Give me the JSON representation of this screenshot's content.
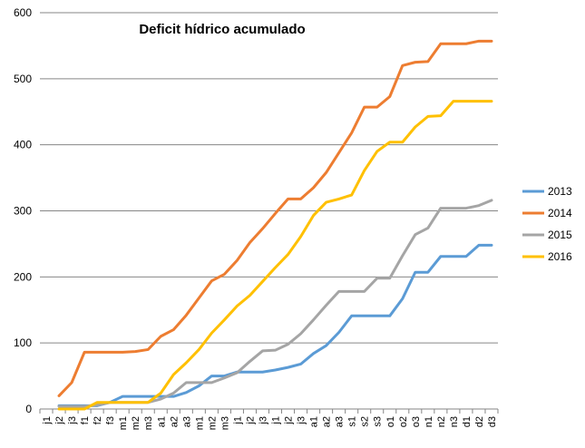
{
  "chart_data": {
    "type": "line",
    "title": "Deficit hídrico acumulado",
    "xlabel": "",
    "ylabel": "",
    "ylim": [
      0,
      600
    ],
    "yticks": [
      0,
      100,
      200,
      300,
      400,
      500,
      600
    ],
    "grid": true,
    "legend_position": "right",
    "categories": [
      "j1",
      "j2",
      "j3",
      "f1",
      "f2",
      "f3",
      "m1",
      "m2",
      "m3",
      "a1",
      "a2",
      "a3",
      "m1",
      "m2",
      "m3",
      "j1",
      "j2",
      "j3",
      "j1",
      "j2",
      "j3",
      "a1",
      "a2",
      "a3",
      "s1",
      "s2",
      "s3",
      "o1",
      "o2",
      "o3",
      "n1",
      "n2",
      "n3",
      "d1",
      "d2",
      "d3"
    ],
    "series": [
      {
        "name": "2013",
        "color": "#5B9BD5",
        "values": [
          null,
          5,
          5,
          5,
          5,
          10,
          19,
          19,
          19,
          19,
          19,
          25,
          35,
          50,
          50,
          56,
          56,
          56,
          59,
          63,
          68,
          84,
          96,
          116,
          141,
          141,
          141,
          141,
          167,
          207,
          207,
          231,
          231,
          231,
          248,
          248
        ]
      },
      {
        "name": "2014",
        "color": "#ED7D31",
        "values": [
          null,
          20,
          40,
          86,
          86,
          86,
          86,
          87,
          90,
          110,
          120,
          142,
          168,
          194,
          204,
          225,
          252,
          273,
          296,
          318,
          318,
          335,
          358,
          388,
          418,
          457,
          457,
          473,
          520,
          525,
          526,
          553,
          553,
          553,
          557,
          557
        ]
      },
      {
        "name": "2015",
        "color": "#A5A5A5",
        "values": [
          null,
          4,
          4,
          4,
          6,
          10,
          10,
          10,
          10,
          15,
          24,
          40,
          40,
          40,
          47,
          55,
          72,
          88,
          89,
          98,
          114,
          135,
          157,
          178,
          178,
          178,
          198,
          198,
          232,
          264,
          274,
          304,
          304,
          304,
          308,
          316
        ]
      },
      {
        "name": "2016",
        "color": "#FFC000",
        "values": [
          null,
          0,
          0,
          0,
          10,
          10,
          10,
          10,
          10,
          24,
          52,
          70,
          90,
          115,
          135,
          156,
          172,
          193,
          214,
          234,
          261,
          293,
          313,
          318,
          324,
          361,
          390,
          404,
          404,
          427,
          443,
          444,
          466,
          466,
          466,
          466
        ]
      }
    ]
  }
}
